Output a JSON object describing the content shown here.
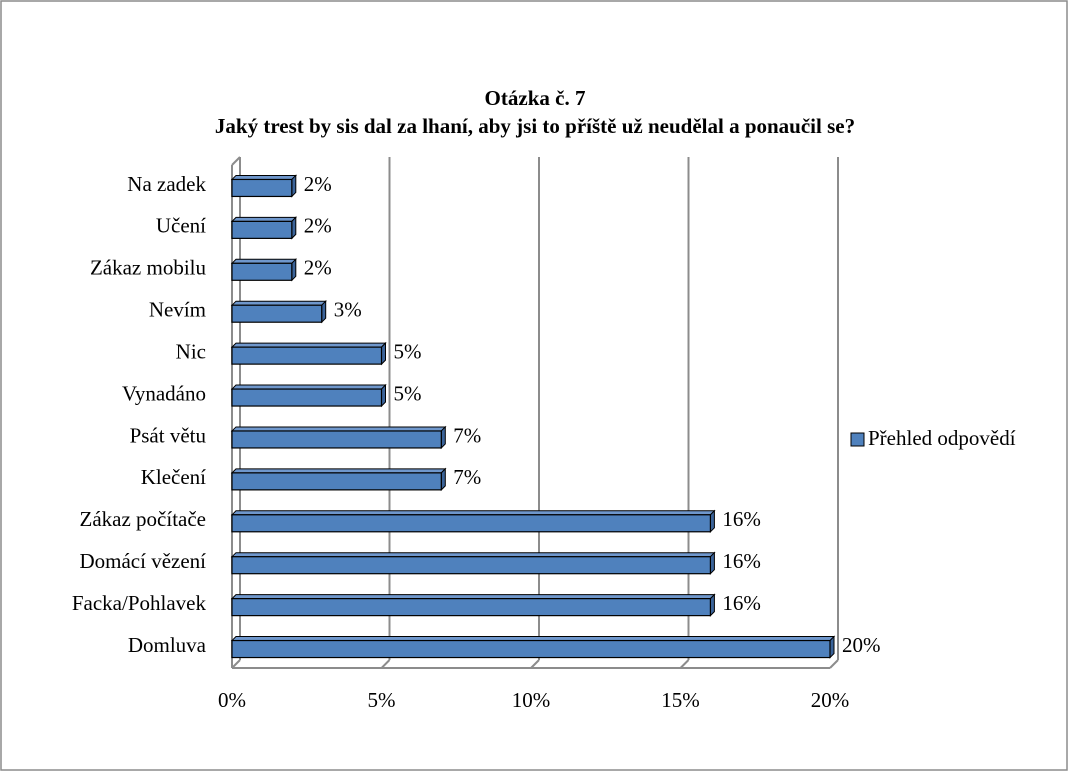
{
  "chart_data": {
    "type": "bar",
    "orientation": "horizontal",
    "title": "Otázka č. 7",
    "subtitle": "Jaký trest by sis dal za lhaní, aby jsi to příště už neudělal a ponaučil se?",
    "categories": [
      "Na zadek",
      "Učení",
      "Zákaz mobilu",
      "Nevím",
      "Nic",
      "Vynadáno",
      "Psát větu",
      "Klečení",
      "Zákaz počítače",
      "Domácí vězení",
      "Facka/Pohlavek",
      "Domluva"
    ],
    "series": [
      {
        "name": "Přehled odpovědí",
        "color": "#4f81bd",
        "values": [
          2,
          2,
          2,
          3,
          5,
          5,
          7,
          7,
          16,
          16,
          16,
          20
        ],
        "value_labels": [
          "2%",
          "2%",
          "2%",
          "3%",
          "5%",
          "5%",
          "7%",
          "7%",
          "16%",
          "16%",
          "16%",
          "20%"
        ]
      }
    ],
    "xlim": [
      0,
      20
    ],
    "xticks": [
      {
        "value": 0,
        "label": "0%"
      },
      {
        "value": 5,
        "label": "5%"
      },
      {
        "value": 10,
        "label": "10%"
      },
      {
        "value": 15,
        "label": "15%"
      },
      {
        "value": 20,
        "label": "20%"
      }
    ],
    "grid": true,
    "legend": "right"
  }
}
